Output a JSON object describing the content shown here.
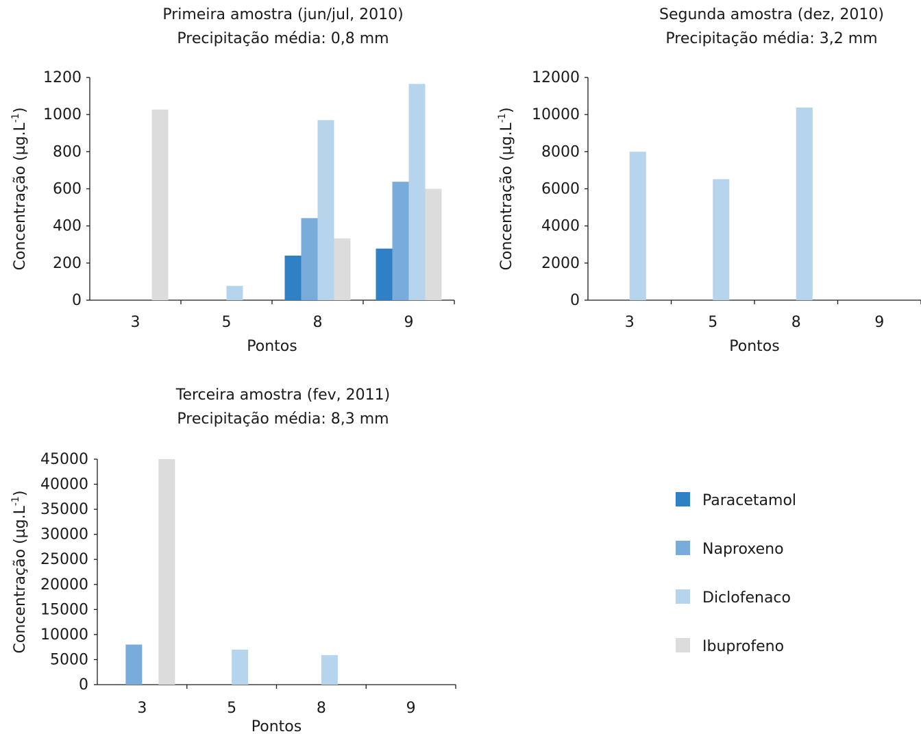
{
  "colors": {
    "Paracetamol": "#2f80c5",
    "Naproxeno": "#79acdb",
    "Diclofenaco": "#b6d4ec",
    "Ibuprofeno": "#dcdcdc"
  },
  "legend": [
    "Paracetamol",
    "Naproxeno",
    "Diclofenaco",
    "Ibuprofeno"
  ],
  "chart_data": [
    {
      "type": "bar",
      "title": [
        "Primeira amostra (jun/jul, 2010)",
        "Precipitação média: 0,8 mm"
      ],
      "xlabel": "Pontos",
      "ylabel": "Concentração (µg.L",
      "ylabel_sup": "-1",
      "ylim": [
        0,
        1200
      ],
      "yticks": [
        0,
        200,
        400,
        600,
        800,
        1000,
        1200
      ],
      "ytick_labels": [
        "0",
        "200",
        "400",
        "600",
        "800",
        "1000",
        "1200"
      ],
      "categories": [
        "3",
        "5",
        "8",
        "9"
      ],
      "series": [
        {
          "name": "Paracetamol",
          "values": [
            0,
            0,
            240,
            278
          ]
        },
        {
          "name": "Naproxeno",
          "values": [
            0,
            0,
            442,
            638
          ]
        },
        {
          "name": "Diclofenaco",
          "values": [
            0,
            77,
            970,
            1165
          ]
        },
        {
          "name": "Ibuprofeno",
          "values": [
            1027,
            0,
            333,
            600
          ]
        }
      ]
    },
    {
      "type": "bar",
      "title": [
        "Segunda amostra (dez, 2010)",
        "Precipitação média: 3,2 mm"
      ],
      "xlabel": "Pontos",
      "ylabel": "Concentração (µg.L",
      "ylabel_sup": "-1",
      "ylim": [
        0,
        12000
      ],
      "yticks": [
        0,
        2000,
        4000,
        6000,
        8000,
        10000,
        12000
      ],
      "ytick_labels": [
        "0",
        "2000",
        "4000",
        "6000",
        "8000",
        "10000",
        "12000"
      ],
      "categories": [
        "3",
        "5",
        "8",
        "9"
      ],
      "series": [
        {
          "name": "Paracetamol",
          "values": [
            0,
            0,
            0,
            0
          ]
        },
        {
          "name": "Naproxeno",
          "values": [
            0,
            0,
            0,
            0
          ]
        },
        {
          "name": "Diclofenaco",
          "values": [
            8000,
            6520,
            10380,
            0
          ]
        },
        {
          "name": "Ibuprofeno",
          "values": [
            0,
            0,
            0,
            0
          ]
        }
      ]
    },
    {
      "type": "bar",
      "title": [
        "Terceira amostra (fev, 2011)",
        "Precipitação média: 8,3 mm"
      ],
      "xlabel": "Pontos",
      "ylabel": "Concentração (µg.L",
      "ylabel_sup": "-1",
      "ylim": [
        0,
        45000
      ],
      "yticks": [
        0,
        5000,
        10000,
        15000,
        20000,
        25000,
        30000,
        35000,
        40000,
        45000
      ],
      "ytick_labels": [
        "0",
        "5000",
        "10000",
        "15000",
        "20000",
        "25000",
        "30000",
        "35000",
        "40000",
        "45000"
      ],
      "categories": [
        "3",
        "5",
        "8",
        "9"
      ],
      "series": [
        {
          "name": "Paracetamol",
          "values": [
            0,
            0,
            0,
            0
          ]
        },
        {
          "name": "Naproxeno",
          "values": [
            8000,
            0,
            0,
            0
          ]
        },
        {
          "name": "Diclofenaco",
          "values": [
            0,
            7000,
            5900,
            0
          ]
        },
        {
          "name": "Ibuprofeno",
          "values": [
            45000,
            0,
            0,
            0
          ]
        }
      ]
    }
  ]
}
